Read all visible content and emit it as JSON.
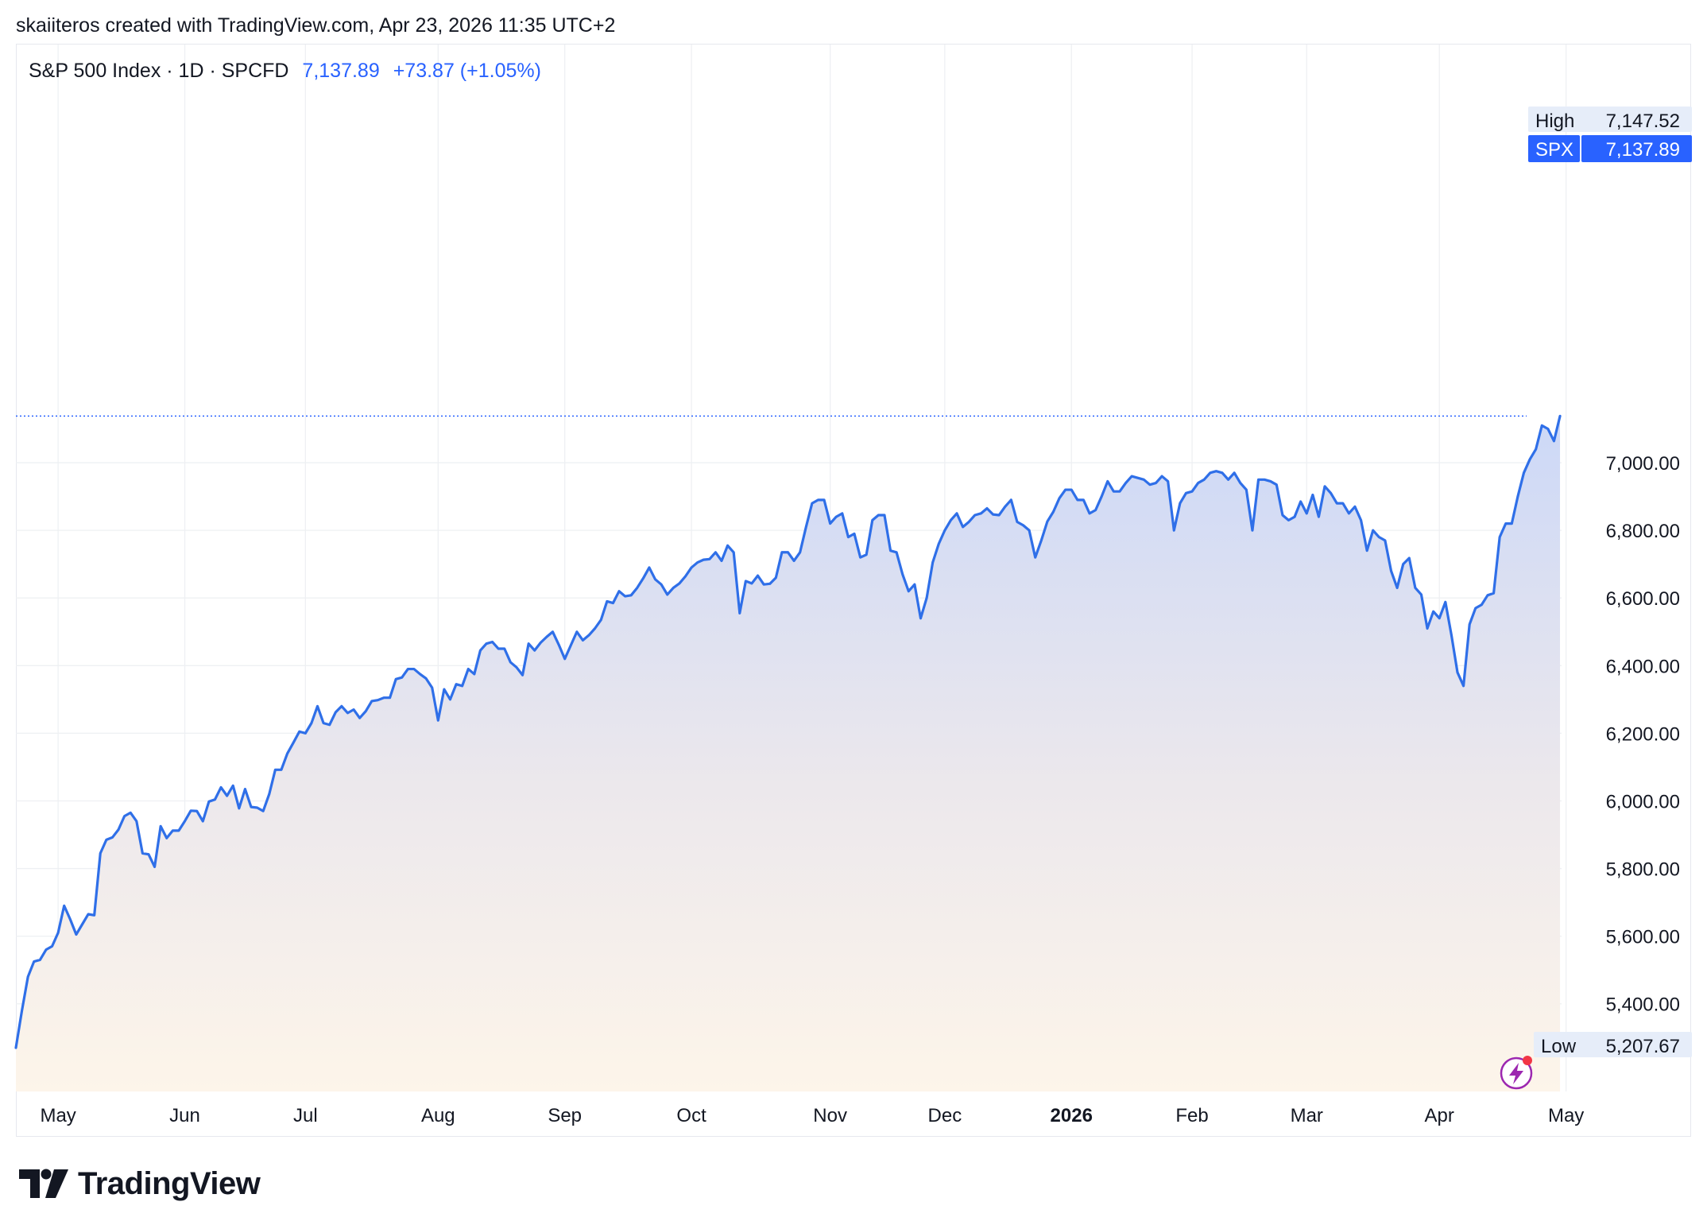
{
  "attribution": "skaiiteros created with TradingView.com, Apr 23, 2026 11:35 UTC+2",
  "legend": {
    "symbol": "S&P 500 Index · 1D · SPCFD",
    "last": "7,137.89",
    "change": "+73.87 (+1.05%)"
  },
  "markers": {
    "high_label": "High",
    "high_value": "7,147.52",
    "last_label": "SPX",
    "last_value": "7,137.89",
    "low_label": "Low",
    "low_value": "5,207.67"
  },
  "brand": {
    "name": "TradingView"
  },
  "colors": {
    "line": "#2f6fe8",
    "accent": "#2962ff",
    "lightning": "#9c27b0"
  },
  "chart_data": {
    "type": "area",
    "ylim": [
      5100,
      7200
    ],
    "yticks": [
      5400,
      5600,
      5800,
      6000,
      6200,
      6400,
      6600,
      6800,
      7000
    ],
    "ytick_labels": [
      "5,400.00",
      "5,600.00",
      "5,800.00",
      "6,000.00",
      "6,200.00",
      "6,400.00",
      "6,600.00",
      "6,800.00",
      "7,000.00"
    ],
    "xticks": [
      {
        "label": "May",
        "idx": 7,
        "bold": false
      },
      {
        "label": "Jun",
        "idx": 28,
        "bold": false
      },
      {
        "label": "Jul",
        "idx": 48,
        "bold": false
      },
      {
        "label": "Aug",
        "idx": 70,
        "bold": false
      },
      {
        "label": "Sep",
        "idx": 91,
        "bold": false
      },
      {
        "label": "Oct",
        "idx": 112,
        "bold": false
      },
      {
        "label": "Nov",
        "idx": 135,
        "bold": false
      },
      {
        "label": "Dec",
        "idx": 154,
        "bold": false
      },
      {
        "label": "2026",
        "idx": 175,
        "bold": true
      },
      {
        "label": "Feb",
        "idx": 195,
        "bold": false
      },
      {
        "label": "Mar",
        "idx": 214,
        "bold": false
      },
      {
        "label": "Apr",
        "idx": 236,
        "bold": false
      },
      {
        "label": "May",
        "idx": 257,
        "bold": false
      }
    ],
    "series": [
      {
        "values": [
          5270,
          5380,
          5480,
          5525,
          5530,
          5560,
          5570,
          5610,
          5690,
          5650,
          5605,
          5635,
          5665,
          5662,
          5845,
          5885,
          5892,
          5915,
          5955,
          5965,
          5940,
          5845,
          5842,
          5805,
          5925,
          5890,
          5912,
          5912,
          5940,
          5971,
          5970,
          5940,
          5998,
          6004,
          6040,
          6015,
          6045,
          5978,
          6035,
          5982,
          5980,
          5970,
          6020,
          6092,
          6092,
          6140,
          6172,
          6205,
          6200,
          6230,
          6280,
          6230,
          6225,
          6262,
          6280,
          6260,
          6270,
          6245,
          6265,
          6295,
          6298,
          6305,
          6305,
          6360,
          6365,
          6390,
          6390,
          6375,
          6362,
          6335,
          6238,
          6330,
          6300,
          6345,
          6340,
          6390,
          6375,
          6445,
          6465,
          6470,
          6450,
          6450,
          6410,
          6395,
          6372,
          6465,
          6445,
          6468,
          6485,
          6500,
          6462,
          6420,
          6460,
          6500,
          6475,
          6490,
          6510,
          6535,
          6590,
          6585,
          6620,
          6605,
          6608,
          6630,
          6658,
          6690,
          6655,
          6640,
          6610,
          6630,
          6643,
          6664,
          6690,
          6705,
          6713,
          6715,
          6735,
          6710,
          6755,
          6735,
          6555,
          6650,
          6643,
          6666,
          6640,
          6642,
          6660,
          6735,
          6735,
          6710,
          6735,
          6810,
          6880,
          6890,
          6890,
          6820,
          6840,
          6850,
          6780,
          6790,
          6720,
          6728,
          6830,
          6845,
          6845,
          6740,
          6735,
          6670,
          6620,
          6640,
          6540,
          6600,
          6705,
          6760,
          6800,
          6830,
          6850,
          6810,
          6825,
          6845,
          6850,
          6865,
          6847,
          6845,
          6870,
          6890,
          6825,
          6815,
          6800,
          6720,
          6770,
          6826,
          6855,
          6895,
          6920,
          6920,
          6890,
          6890,
          6850,
          6860,
          6900,
          6945,
          6915,
          6915,
          6940,
          6960,
          6955,
          6950,
          6935,
          6940,
          6960,
          6945,
          6800,
          6880,
          6910,
          6915,
          6940,
          6950,
          6970,
          6975,
          6970,
          6950,
          6970,
          6940,
          6920,
          6800,
          6950,
          6950,
          6945,
          6935,
          6845,
          6830,
          6840,
          6885,
          6850,
          6905,
          6840,
          6930,
          6910,
          6880,
          6880,
          6850,
          6870,
          6830,
          6740,
          6800,
          6780,
          6770,
          6680,
          6630,
          6700,
          6718,
          6630,
          6610,
          6510,
          6560,
          6540,
          6588,
          6490,
          6380,
          6340,
          6522,
          6570,
          6580,
          6608,
          6614,
          6780,
          6820,
          6820,
          6900,
          6970,
          7010,
          7040,
          7110,
          7100,
          7064,
          7138
        ]
      }
    ],
    "high": 7147.52,
    "last": 7137.89,
    "low": 5207.67
  }
}
